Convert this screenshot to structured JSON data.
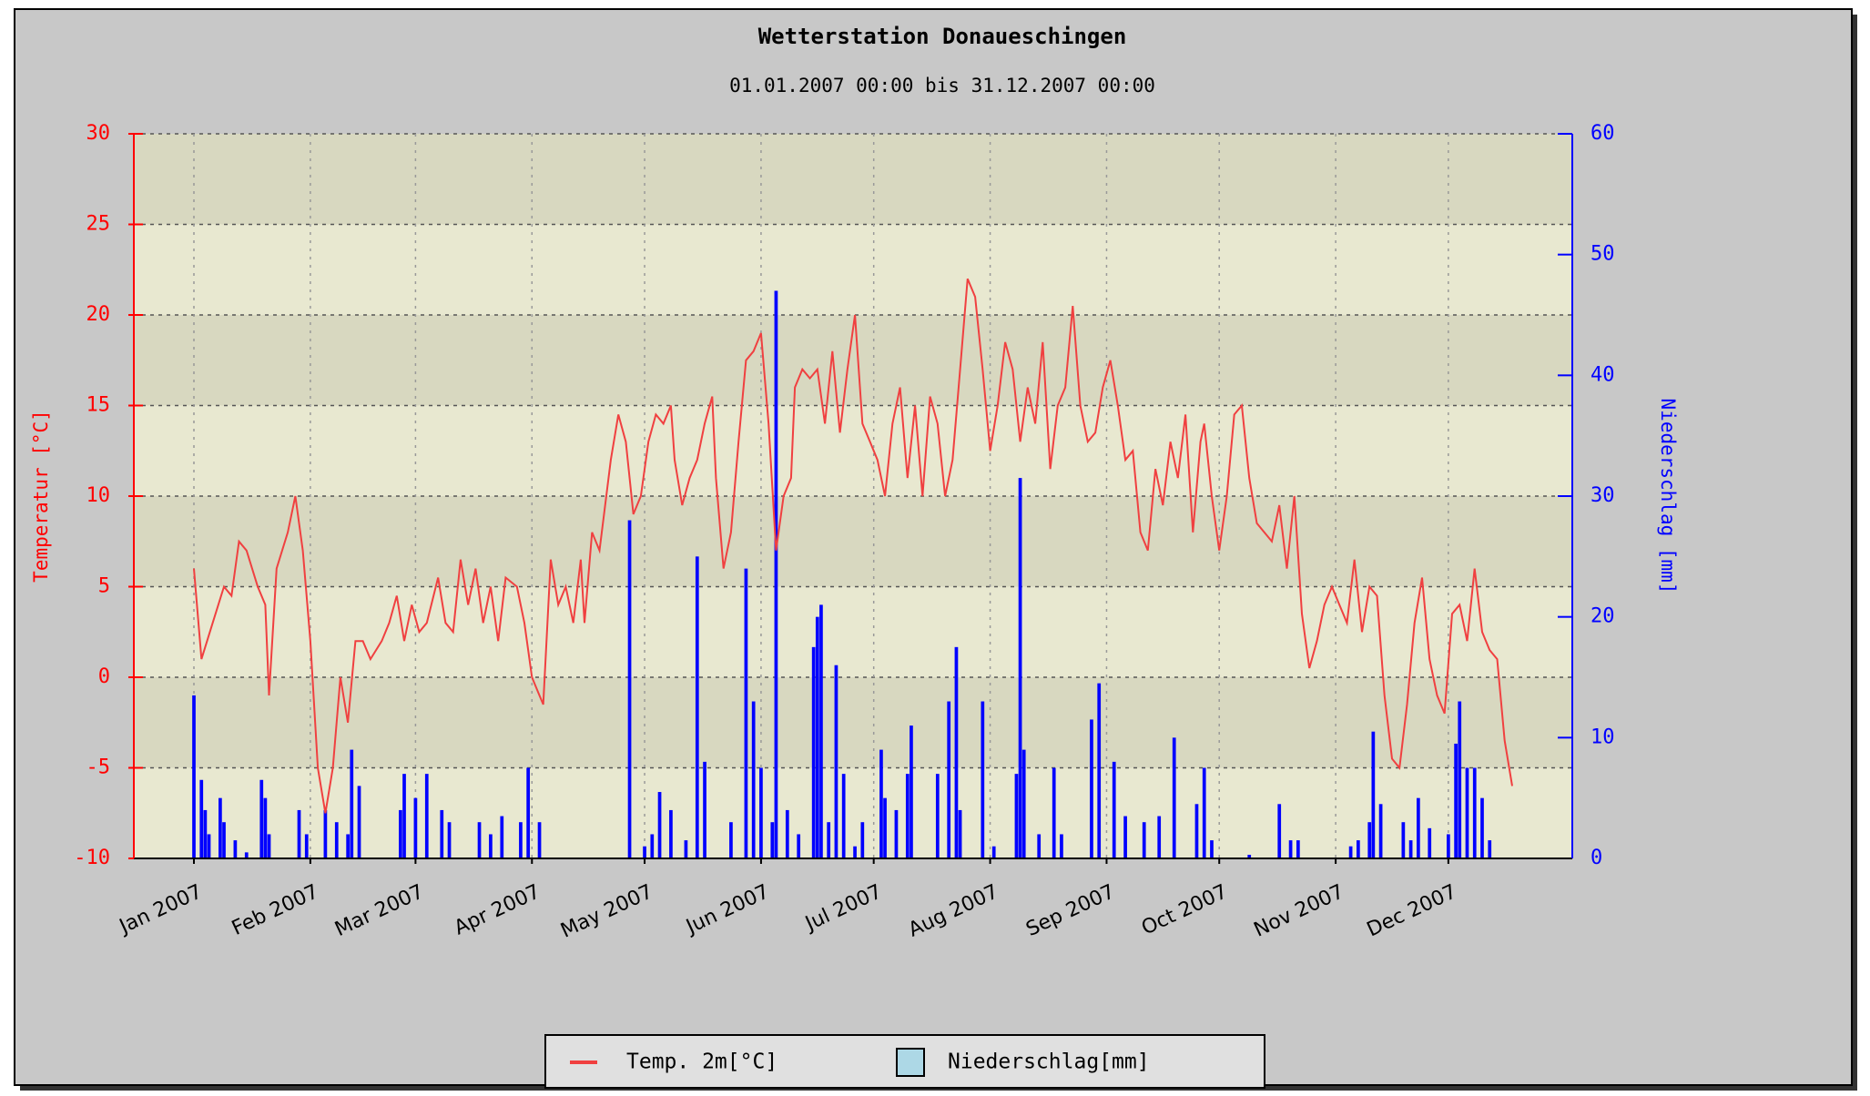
{
  "chart_data": {
    "type": "line",
    "title": "Wetterstation Donaueschingen",
    "subtitle": "01.01.2007 00:00 bis 31.12.2007 00:00",
    "y_label": "Temperatur [°C]",
    "y2_label": "Niederschlag [mm]",
    "xlim": [
      -16,
      367
    ],
    "xticks": [
      {
        "value": 0,
        "label": "Jan 2007"
      },
      {
        "value": 31,
        "label": "Feb 2007"
      },
      {
        "value": 59,
        "label": "Mar 2007"
      },
      {
        "value": 90,
        "label": "Apr 2007"
      },
      {
        "value": 120,
        "label": "May 2007"
      },
      {
        "value": 151,
        "label": "Jun 2007"
      },
      {
        "value": 181,
        "label": "Jul 2007"
      },
      {
        "value": 212,
        "label": "Aug 2007"
      },
      {
        "value": 243,
        "label": "Sep 2007"
      },
      {
        "value": 273,
        "label": "Oct 2007"
      },
      {
        "value": 304,
        "label": "Nov 2007"
      },
      {
        "value": 334,
        "label": "Dec 2007"
      }
    ],
    "ylim": [
      -10,
      30
    ],
    "yticks": [
      -10,
      -5,
      0,
      5,
      10,
      15,
      20,
      25,
      30
    ],
    "y2lim": [
      0,
      60
    ],
    "y2ticks": [
      0,
      10,
      20,
      30,
      40,
      50,
      60
    ],
    "grid": true,
    "legend": "bottom",
    "series": [
      {
        "name": "Temp. 2m[°C]",
        "type": "line",
        "color": "#f04040",
        "x": [
          0,
          2,
          5,
          8,
          10,
          12,
          14,
          17,
          19,
          20,
          22,
          25,
          27,
          29,
          31,
          33,
          35,
          37,
          39,
          41,
          43,
          45,
          47,
          50,
          52,
          54,
          56,
          58,
          60,
          62,
          65,
          67,
          69,
          71,
          73,
          75,
          77,
          79,
          81,
          83,
          86,
          88,
          90,
          92,
          93,
          95,
          97,
          99,
          101,
          103,
          104,
          106,
          108,
          111,
          113,
          115,
          117,
          119,
          121,
          123,
          125,
          127,
          128,
          130,
          132,
          134,
          136,
          138,
          139,
          141,
          143,
          145,
          147,
          149,
          151,
          153,
          155,
          157,
          159,
          160,
          162,
          164,
          166,
          168,
          170,
          172,
          174,
          176,
          178,
          180,
          182,
          184,
          186,
          188,
          190,
          192,
          194,
          196,
          198,
          200,
          202,
          204,
          206,
          208,
          210,
          212,
          214,
          216,
          218,
          220,
          222,
          224,
          226,
          228,
          230,
          232,
          234,
          236,
          238,
          240,
          242,
          244,
          246,
          248,
          250,
          252,
          254,
          256,
          258,
          260,
          262,
          264,
          266,
          268,
          269,
          271,
          273,
          275,
          277,
          279,
          281,
          283,
          285,
          287,
          289,
          291,
          293,
          295,
          297,
          299,
          301,
          303,
          305,
          307,
          309,
          311,
          313,
          315,
          317,
          319,
          321,
          323,
          325,
          327,
          329,
          331,
          333,
          335,
          337,
          339,
          341,
          343,
          345,
          347,
          349,
          351
        ],
        "values": [
          6,
          1,
          3,
          5,
          4.5,
          7.5,
          7,
          5,
          4,
          -1,
          6,
          8,
          10,
          7,
          2,
          -5,
          -7.5,
          -5,
          0,
          -2.5,
          2,
          2,
          1,
          2,
          3,
          4.5,
          2,
          4,
          2.5,
          3,
          5.5,
          3,
          2.5,
          6.5,
          4,
          6,
          3,
          5,
          2,
          5.5,
          5,
          3,
          0,
          -1,
          -1.5,
          6.5,
          4,
          5,
          3,
          6.5,
          3,
          8,
          7,
          12,
          14.5,
          13,
          9,
          10,
          13,
          14.5,
          14,
          15,
          12,
          9.5,
          11,
          12,
          14,
          15.5,
          11,
          6,
          8,
          13,
          17.5,
          18,
          19,
          14,
          7,
          10,
          11,
          16,
          17,
          16.5,
          17,
          14,
          18,
          13.5,
          17,
          20,
          14,
          13,
          12,
          10,
          14,
          16,
          11,
          15,
          10,
          15.5,
          14,
          10,
          12,
          17,
          22,
          21,
          17,
          12.5,
          15,
          18.5,
          17,
          13,
          16,
          14,
          18.5,
          11.5,
          15,
          16,
          20.5,
          15,
          13,
          13.5,
          16,
          17.5,
          15,
          12,
          12.5,
          8,
          7,
          11.5,
          9.5,
          13,
          11,
          14.5,
          8,
          13,
          14,
          10,
          7,
          10,
          14.5,
          15,
          11,
          8.5,
          8,
          7.5,
          9.5,
          6,
          10,
          3.5,
          0.5,
          2,
          4,
          5,
          4,
          3,
          6.5,
          2.5,
          5,
          4.5,
          -1,
          -4.5,
          -5,
          -1.5,
          3,
          5.5,
          1,
          -1,
          -2,
          3.5,
          4,
          2,
          6,
          2.5,
          1.5,
          1,
          -3.5,
          -6
        ]
      },
      {
        "name": "Niederschlag[mm]",
        "type": "bar",
        "axis": "y2",
        "color": "#0000ff",
        "legend_color": "#add8e6",
        "x": [
          0,
          2,
          3,
          4,
          7,
          8,
          11,
          14,
          18,
          19,
          20,
          28,
          30,
          35,
          38,
          41,
          42,
          44,
          55,
          56,
          59,
          62,
          66,
          68,
          76,
          79,
          82,
          87,
          89,
          92,
          116,
          120,
          122,
          124,
          127,
          131,
          134,
          136,
          143,
          147,
          149,
          151,
          154,
          155,
          158,
          161,
          165,
          166,
          167,
          169,
          171,
          173,
          176,
          178,
          183,
          184,
          187,
          190,
          191,
          198,
          201,
          203,
          204,
          210,
          213,
          219,
          220,
          221,
          225,
          229,
          231,
          239,
          241,
          245,
          248,
          253,
          257,
          261,
          267,
          269,
          271,
          281,
          289,
          292,
          294,
          308,
          310,
          313,
          314,
          316,
          322,
          324,
          326,
          329,
          334,
          336,
          337,
          339,
          341,
          343,
          345
        ],
        "values": [
          13.5,
          6.5,
          4,
          2,
          5,
          3,
          1.5,
          0.5,
          6.5,
          5,
          2,
          4,
          2,
          4,
          3,
          2,
          9,
          6,
          4,
          7,
          5,
          7,
          4,
          3,
          3,
          2,
          3.5,
          3,
          7.5,
          3,
          28,
          1,
          2,
          5.5,
          4,
          1.5,
          25,
          8,
          3,
          24,
          13,
          7.5,
          3,
          47,
          4,
          2,
          17.5,
          20,
          21,
          3,
          16,
          7,
          1,
          3,
          9,
          5,
          4,
          7,
          11,
          7,
          13,
          17.5,
          4,
          13,
          1,
          7,
          31.5,
          9,
          2,
          7.5,
          2,
          11.5,
          14.5,
          8,
          3.5,
          3,
          3.5,
          10,
          4.5,
          7.5,
          1.5,
          0.3,
          4.5,
          1.5,
          1.5,
          1,
          1.5,
          3,
          10.5,
          4.5,
          3,
          1.5,
          5,
          2.5,
          2,
          9.5,
          13,
          7.5,
          7.5,
          5,
          1.5
        ]
      }
    ]
  }
}
